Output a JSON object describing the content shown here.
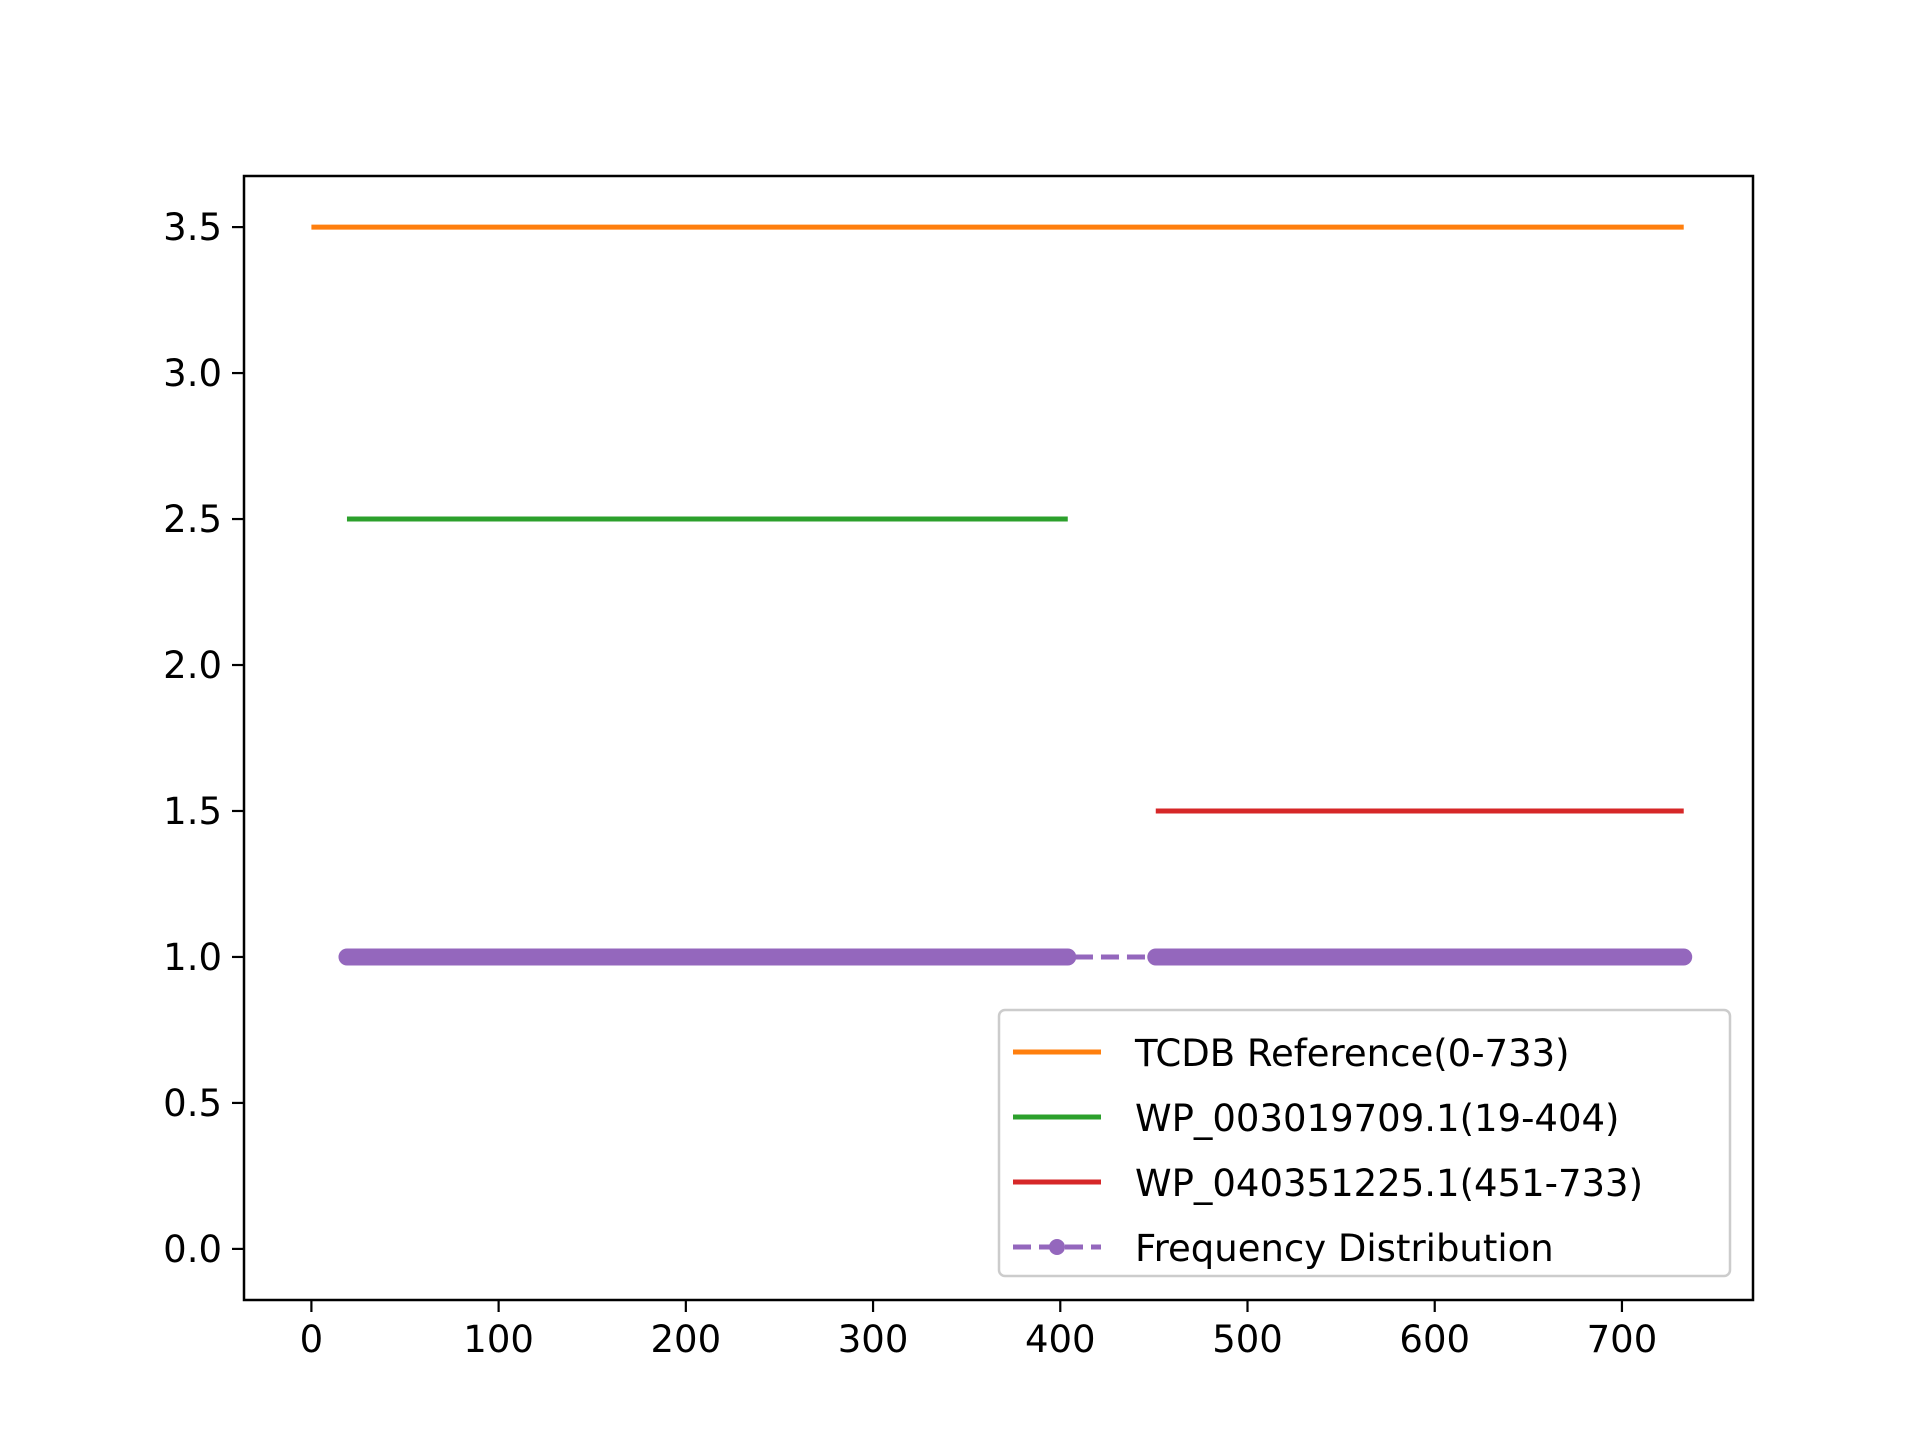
{
  "chart_data": {
    "type": "line",
    "title": "",
    "xlabel": "",
    "ylabel": "",
    "xlim": [
      -36,
      770
    ],
    "ylim": [
      -0.175,
      3.675
    ],
    "x_ticks": [
      0,
      100,
      200,
      300,
      400,
      500,
      600,
      700
    ],
    "y_ticks": [
      0.0,
      0.5,
      1.0,
      1.5,
      2.0,
      2.5,
      3.0,
      3.5
    ],
    "x_tick_labels": [
      "0",
      "100",
      "200",
      "300",
      "400",
      "500",
      "600",
      "700"
    ],
    "y_tick_labels": [
      "0.0",
      "0.5",
      "1.0",
      "1.5",
      "2.0",
      "2.5",
      "3.0",
      "3.5"
    ],
    "grid": false,
    "legend_position": "lower-right",
    "series": [
      {
        "name": "TCDB Reference(0-733)",
        "color": "#ff7f0e",
        "style": "solid",
        "segments": [
          {
            "x": [
              0,
              733
            ],
            "y": [
              3.5,
              3.5
            ]
          }
        ]
      },
      {
        "name": "WP_003019709.1(19-404)",
        "color": "#2ca02c",
        "style": "solid",
        "segments": [
          {
            "x": [
              19,
              404
            ],
            "y": [
              2.5,
              2.5
            ]
          }
        ]
      },
      {
        "name": "WP_040351225.1(451-733)",
        "color": "#d62728",
        "style": "solid",
        "segments": [
          {
            "x": [
              451,
              733
            ],
            "y": [
              1.5,
              1.5
            ]
          }
        ]
      },
      {
        "name": "Frequency Distribution",
        "color": "#9467bd",
        "style": "dashed-with-dots",
        "marker_ranges": [
          [
            19,
            404
          ],
          [
            451,
            733
          ]
        ],
        "line_range": [
          19,
          733
        ],
        "y": 1.0
      }
    ]
  }
}
